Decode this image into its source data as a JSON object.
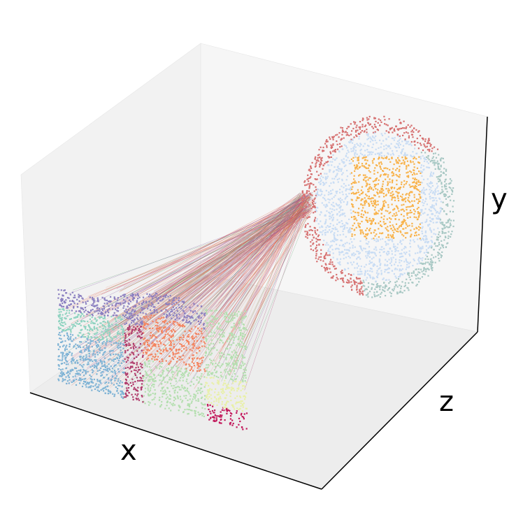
{
  "chart_data": {
    "type": "scatter",
    "projection": "3d",
    "title": "",
    "xlabel": "x",
    "ylabel": "y",
    "zlabel": "z",
    "grid": false,
    "legend": "none",
    "ticks": "hidden",
    "slices": [
      {
        "name": "",
        "position": "front-left",
        "cluster_colors": [
          "#7fb3d5",
          "#8fd3c0",
          "#b03a6b",
          "#f4845f",
          "#8a7fc0",
          "#b5dfb0",
          "#e8f0a8",
          "#c2185b"
        ]
      },
      {
        "name": "",
        "position": "back-right",
        "cluster_colors": [
          "#c8dcf4",
          "#f8b24a",
          "#a8c8c4",
          "#d67070"
        ]
      }
    ],
    "link_colors": [
      "#e05a3c",
      "#d6604d",
      "#8a5fa8",
      "#6aa57a",
      "#b04a7a",
      "#e8a08c"
    ]
  }
}
